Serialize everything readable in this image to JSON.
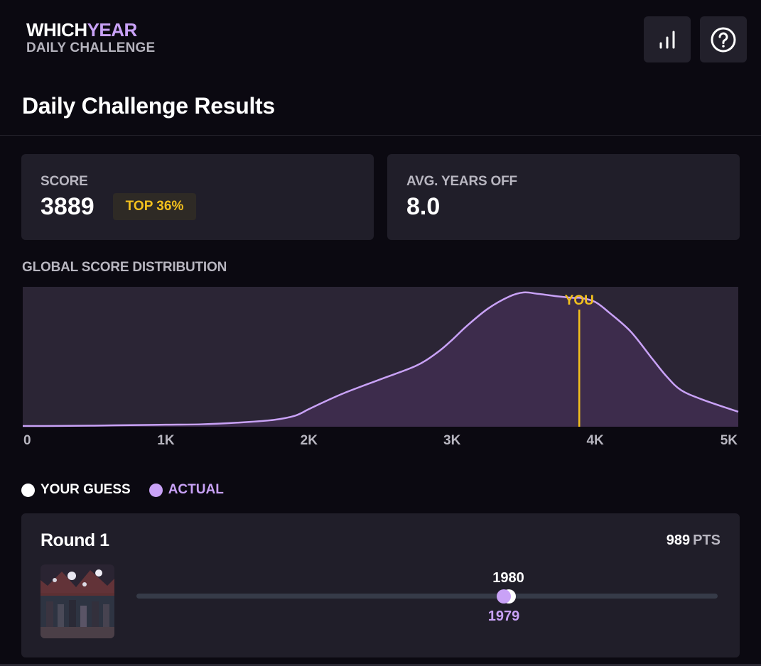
{
  "header": {
    "logo_which": "WHICH",
    "logo_year": "YEAR",
    "logo_sub": "DAILY CHALLENGE",
    "stats_icon": "bar-chart-icon",
    "help_icon": "question-circle-icon"
  },
  "page_title": "Daily Challenge Results",
  "score_card": {
    "label": "SCORE",
    "value": "3889",
    "badge": "TOP 36%"
  },
  "avg_card": {
    "label": "AVG. YEARS OFF",
    "value": "8.0"
  },
  "distribution": {
    "label": "GLOBAL SCORE DISTRIBUTION",
    "you_label": "YOU"
  },
  "chart_data": {
    "type": "area",
    "title": "GLOBAL SCORE DISTRIBUTION",
    "xlim": [
      0,
      5000
    ],
    "x_ticks": [
      "0",
      "1K",
      "2K",
      "3K",
      "4K",
      "5K"
    ],
    "x_tick_values": [
      0,
      1000,
      2000,
      3000,
      4000,
      5000
    ],
    "x": [
      0,
      250,
      500,
      750,
      1000,
      1250,
      1500,
      1750,
      1900,
      2000,
      2100,
      2250,
      2500,
      2750,
      2900,
      3000,
      3100,
      3250,
      3400,
      3500,
      3600,
      3750,
      3850,
      3900,
      4000,
      4100,
      4250,
      4400,
      4500,
      4600,
      4750,
      5000
    ],
    "y": [
      0.5,
      0.6,
      0.8,
      1.2,
      1.5,
      1.8,
      3,
      5,
      8,
      13,
      18,
      25,
      35,
      45,
      55,
      64,
      74,
      87,
      96,
      99,
      98,
      96,
      95,
      95,
      92,
      84,
      70,
      50,
      37,
      27,
      20,
      11
    ],
    "ylim": [
      0,
      100
    ],
    "marker": {
      "x": 3889,
      "label": "YOU"
    },
    "grid": false,
    "colors": {
      "line": "#c9a2f7",
      "fill": "#3d2c4c",
      "background": "#2b2535",
      "marker": "#f2c01d"
    }
  },
  "legend": {
    "guess_label": "YOUR GUESS",
    "actual_label": "ACTUAL",
    "guess_color": "#ffffff",
    "actual_color": "#c9a2f7"
  },
  "round": {
    "title": "Round 1",
    "points": "989",
    "points_unit": "PTS",
    "guess_year": "1980",
    "actual_year": "1979",
    "year_min": 1900,
    "year_max": 2025
  },
  "colors": {
    "accent": "#c9a2f7",
    "gold": "#f2c01d",
    "card": "#201e29",
    "background": "#0b0911"
  }
}
